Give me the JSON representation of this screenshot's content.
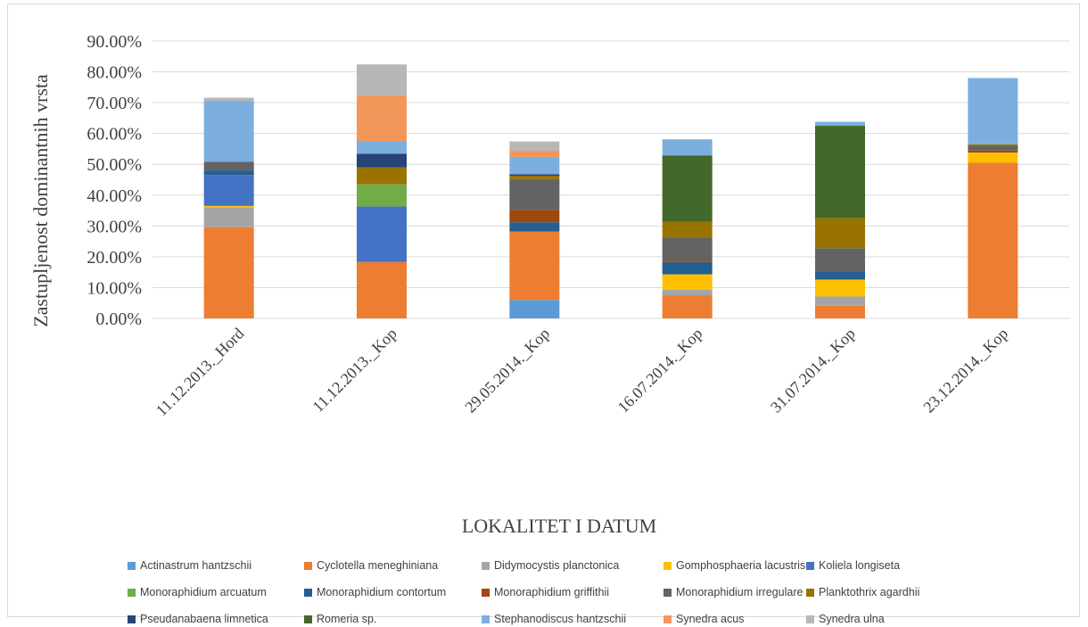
{
  "chart_data": {
    "type": "bar",
    "stacked": true,
    "xlabel": "LOKALITET I DATUM",
    "ylabel": "Zastupljenost dominantnih vrsta",
    "ylim": [
      0,
      0.9
    ],
    "yticks": [
      0,
      0.1,
      0.2,
      0.3,
      0.4,
      0.5,
      0.6,
      0.7,
      0.8,
      0.9
    ],
    "ytick_labels": [
      "0.00%",
      "10.00%",
      "20.00%",
      "30.00%",
      "40.00%",
      "50.00%",
      "60.00%",
      "70.00%",
      "80.00%",
      "90.00%"
    ],
    "grid": true,
    "legend_position": "bottom",
    "categories": [
      "11.12.2013._Hord",
      "11.12.2013._Kop",
      "29.05.2014._Kop",
      "16.07.2014._Kop",
      "31.07.2014._Kop",
      "23.12.2014._Kop"
    ],
    "series": [
      {
        "name": "Actinastrum hantzschii",
        "color": "#5b9bd5",
        "values": [
          0,
          0,
          0.06,
          0,
          0,
          0
        ]
      },
      {
        "name": "Cyclotella meneghiniana",
        "color": "#ed7d31",
        "values": [
          0.296,
          0.183,
          0.222,
          0.075,
          0.041,
          0.505
        ]
      },
      {
        "name": "Didymocystis planctonica",
        "color": "#a5a5a5",
        "values": [
          0.064,
          0,
          0,
          0.018,
          0.03,
          0
        ]
      },
      {
        "name": "Gomphosphaeria lacustris",
        "color": "#ffc000",
        "values": [
          0.005,
          0,
          0,
          0.05,
          0.055,
          0.033
        ]
      },
      {
        "name": "Koliela longiseta",
        "color": "#4472c4",
        "values": [
          0.1,
          0.18,
          0,
          0,
          0,
          0
        ]
      },
      {
        "name": "Monoraphidium arcuatum",
        "color": "#70ad47",
        "values": [
          0,
          0.072,
          0,
          0,
          0,
          0
        ]
      },
      {
        "name": "Monoraphidium contortum",
        "color": "#255e91",
        "values": [
          0.015,
          0,
          0.03,
          0.04,
          0.026,
          0
        ]
      },
      {
        "name": "Monoraphidium griffithii",
        "color": "#9e480e",
        "values": [
          0,
          0,
          0.04,
          0.005,
          0,
          0.007
        ]
      },
      {
        "name": "Monoraphidium irregulare",
        "color": "#636363",
        "values": [
          0.028,
          0,
          0.1,
          0.075,
          0.076,
          0.015
        ]
      },
      {
        "name": "Planktothrix agardhii",
        "color": "#997300",
        "values": [
          0,
          0.055,
          0.011,
          0.05,
          0.097,
          0.005
        ]
      },
      {
        "name": "Pseudanabaena limnetica",
        "color": "#264478",
        "values": [
          0,
          0.044,
          0.005,
          0,
          0,
          0
        ]
      },
      {
        "name": "Romeria sp.",
        "color": "#43682b",
        "values": [
          0,
          0,
          0,
          0.216,
          0.3,
          0
        ]
      },
      {
        "name": "Stephanodiscus hantzschii",
        "color": "#7cafdd",
        "values": [
          0.198,
          0.039,
          0.056,
          0.052,
          0.013,
          0.215
        ]
      },
      {
        "name": "Synedra acus",
        "color": "#f1975a",
        "values": [
          0,
          0.151,
          0.02,
          0,
          0,
          0
        ]
      },
      {
        "name": "Synedra ulna",
        "color": "#b7b7b7",
        "values": [
          0.01,
          0.1,
          0.03,
          0,
          0,
          0
        ]
      }
    ]
  }
}
